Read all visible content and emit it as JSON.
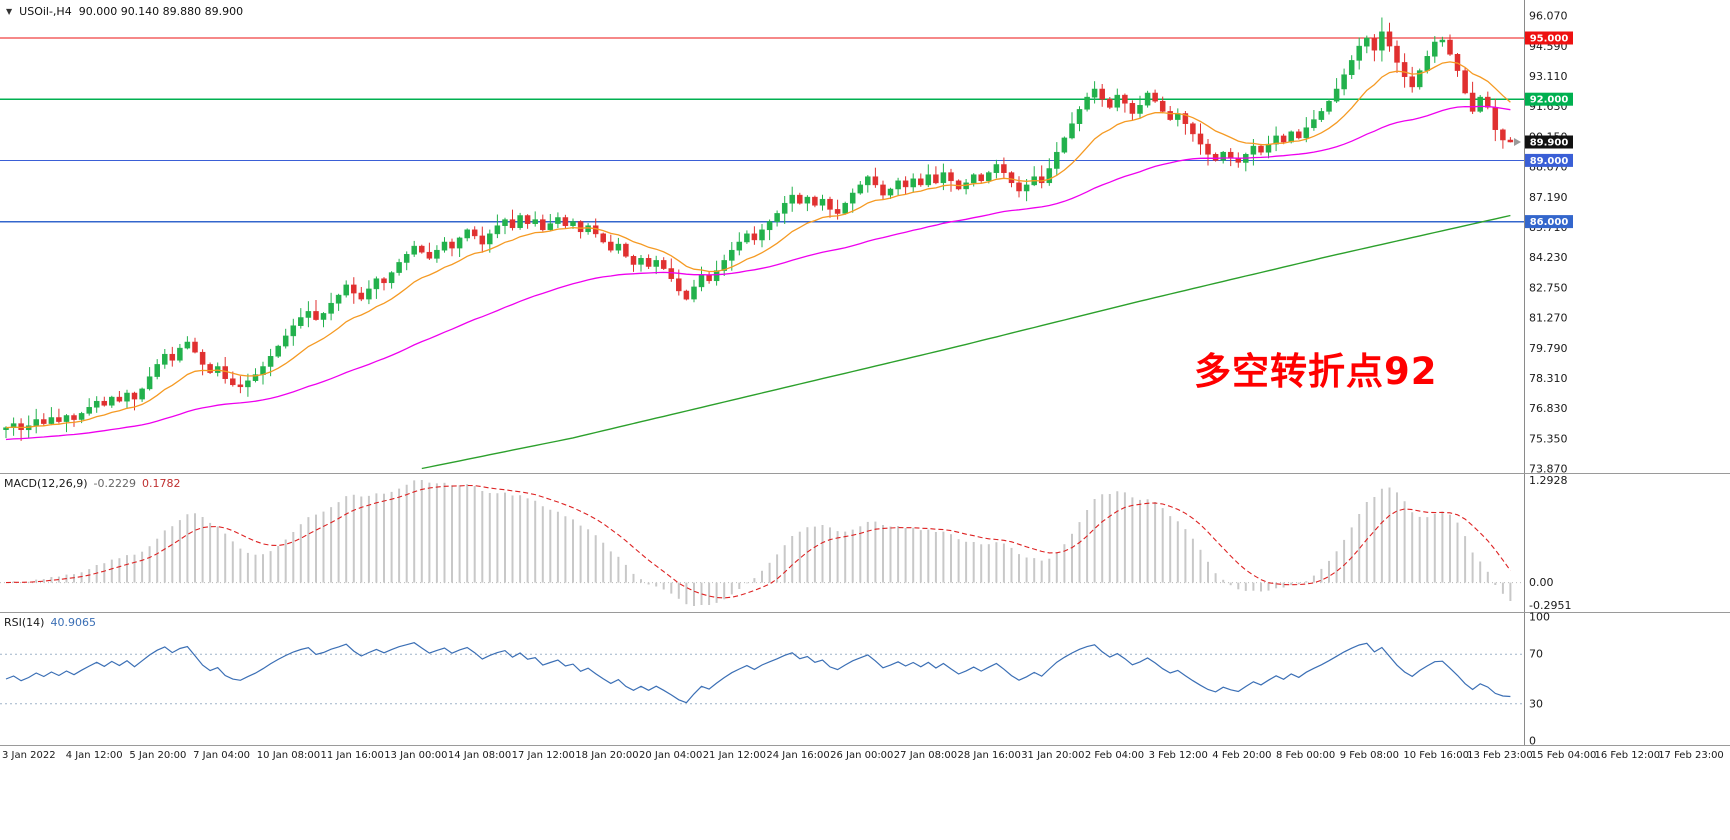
{
  "header": {
    "dropdown_icon": "▼",
    "symbol": "USOil-,H4",
    "ohlc": "90.000 90.140 89.880 89.900"
  },
  "annotation": {
    "text": "多空转折点92",
    "color": "#FF0000"
  },
  "indicators": {
    "macd": {
      "title": "MACD(12,26,9)",
      "main_value": "-0.2229",
      "signal_value": "0.1782"
    },
    "rsi": {
      "title": "RSI(14)",
      "value": "40.9065"
    }
  },
  "chart_data": {
    "type": "candlestick",
    "symbol": "USOil-",
    "timeframe": "H4",
    "price_axis": {
      "view_max": 96.86,
      "view_min": 73.68,
      "labels": [
        "96.070",
        "94.590",
        "93.110",
        "91.630",
        "90.150",
        "88.670",
        "87.190",
        "85.710",
        "84.230",
        "82.750",
        "81.270",
        "79.790",
        "78.310",
        "76.830",
        "75.350",
        "73.870"
      ]
    },
    "time_axis_labels": [
      "3 Jan 2022",
      "4 Jan 12:00",
      "5 Jan 20:00",
      "7 Jan 04:00",
      "10 Jan 08:00",
      "11 Jan 16:00",
      "13 Jan 00:00",
      "14 Jan 08:00",
      "17 Jan 12:00",
      "18 Jan 20:00",
      "20 Jan 04:00",
      "21 Jan 12:00",
      "24 Jan 16:00",
      "26 Jan 00:00",
      "27 Jan 08:00",
      "28 Jan 16:00",
      "31 Jan 20:00",
      "2 Feb 04:00",
      "3 Feb 12:00",
      "4 Feb 20:00",
      "8 Feb 00:00",
      "9 Feb 08:00",
      "10 Feb 16:00",
      "13 Feb 23:00",
      "15 Feb 04:00",
      "16 Feb 12:00",
      "17 Feb 23:00"
    ],
    "open_first": 75.8,
    "closes": [
      75.9,
      76.1,
      75.8,
      76.0,
      76.3,
      76.1,
      76.4,
      76.2,
      76.5,
      76.3,
      76.6,
      76.9,
      77.2,
      77.0,
      77.4,
      77.2,
      77.6,
      77.3,
      77.8,
      78.4,
      79.0,
      79.5,
      79.2,
      79.8,
      80.1,
      79.6,
      79.0,
      78.6,
      78.9,
      78.3,
      78.0,
      77.9,
      78.2,
      78.5,
      78.9,
      79.4,
      79.9,
      80.4,
      80.9,
      81.3,
      81.6,
      81.2,
      81.5,
      82.0,
      82.4,
      82.9,
      82.5,
      82.2,
      82.7,
      83.2,
      83.0,
      83.5,
      84.0,
      84.4,
      84.8,
      84.5,
      84.2,
      84.6,
      85.0,
      84.7,
      85.2,
      85.6,
      85.3,
      84.9,
      85.4,
      85.8,
      86.1,
      85.7,
      86.3,
      85.9,
      86.1,
      85.6,
      85.9,
      86.2,
      85.8,
      86.0,
      85.5,
      85.8,
      85.4,
      85.0,
      84.6,
      84.9,
      84.3,
      83.9,
      84.2,
      83.8,
      84.1,
      83.7,
      83.2,
      82.6,
      82.2,
      82.8,
      83.4,
      83.1,
      83.6,
      84.1,
      84.6,
      85.0,
      85.4,
      85.1,
      85.6,
      86.0,
      86.4,
      86.9,
      87.3,
      86.9,
      87.2,
      86.8,
      87.1,
      86.6,
      86.4,
      86.9,
      87.4,
      87.8,
      88.2,
      87.8,
      87.3,
      87.6,
      88.0,
      87.7,
      88.1,
      87.8,
      88.3,
      87.9,
      88.4,
      88.0,
      87.6,
      87.9,
      88.3,
      88.0,
      88.4,
      88.8,
      88.4,
      87.9,
      87.5,
      87.8,
      88.2,
      87.9,
      88.6,
      89.4,
      90.1,
      90.8,
      91.5,
      92.1,
      92.5,
      92.0,
      91.6,
      92.2,
      91.8,
      91.3,
      91.7,
      92.3,
      91.9,
      91.4,
      91.0,
      91.3,
      90.8,
      90.3,
      89.8,
      89.3,
      89.0,
      89.4,
      89.1,
      88.9,
      89.3,
      89.7,
      89.4,
      89.8,
      90.2,
      89.9,
      90.4,
      90.1,
      90.6,
      91.0,
      91.4,
      91.9,
      92.5,
      93.2,
      93.9,
      94.6,
      95.0,
      94.4,
      95.3,
      94.6,
      93.8,
      93.1,
      92.6,
      93.4,
      94.1,
      94.8,
      94.9,
      94.2,
      93.4,
      92.3,
      91.4,
      92.1,
      91.6,
      90.5,
      90.0,
      89.9
    ],
    "observed_high": 96.0,
    "last_candle_ohlc": [
      90.0,
      90.14,
      89.88,
      89.9
    ],
    "levels": [
      {
        "price": 95.0,
        "label": "95.000",
        "color": "#EE1111"
      },
      {
        "price": 92.0,
        "label": "92.000",
        "color": "#00B050"
      },
      {
        "price": 89.0,
        "label": "89.000",
        "color": "#3A5FD6"
      },
      {
        "price": 86.0,
        "label": "86.000",
        "color": "#3366CC"
      }
    ],
    "current_price": {
      "value": 89.9,
      "label": "89.900"
    },
    "moving_averages": {
      "fast": {
        "period": 13,
        "color": "#F59A23"
      },
      "mid": {
        "period": 55,
        "color": "#EE00EE"
      },
      "long": {
        "color": "#2CA02C",
        "points": [
          [
            55,
            73.9
          ],
          [
            75,
            75.4
          ],
          [
            100,
            77.6
          ],
          [
            125,
            79.8
          ],
          [
            150,
            82.1
          ],
          [
            175,
            84.3
          ],
          [
            199,
            86.3
          ]
        ]
      }
    },
    "macd": {
      "params": [
        12,
        26,
        9
      ],
      "scale_max": 1.2928,
      "scale_min": -0.2951,
      "axis_labels": [
        "1.2928",
        "0.00",
        "-0.2951"
      ],
      "hist_color": "#C8C8C8",
      "signal_color": "#DD2222"
    },
    "rsi": {
      "period": 14,
      "levels": [
        70,
        30
      ],
      "axis_labels": [
        "100",
        "70",
        "30",
        "0"
      ],
      "color": "#3B6FB5"
    },
    "candle_up_color": "#22B14C",
    "candle_down_color": "#E03030"
  }
}
